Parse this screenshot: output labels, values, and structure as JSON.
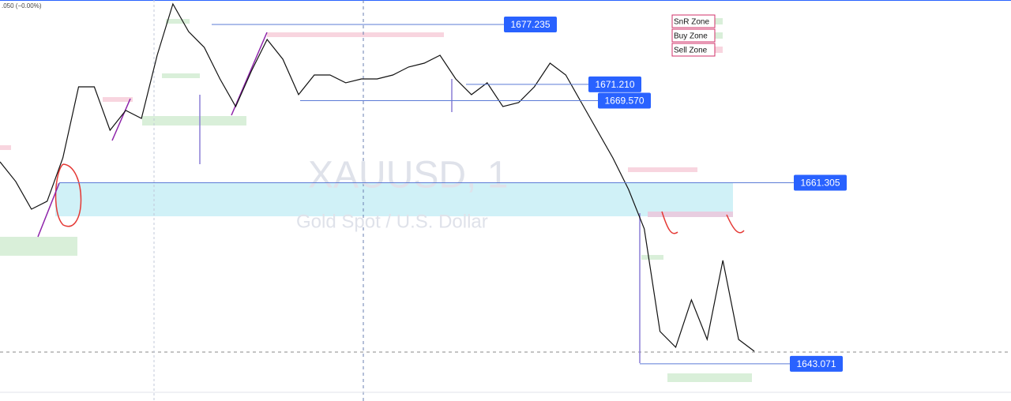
{
  "chart_data": {
    "type": "line",
    "title": "XAUUSD, 1",
    "subtitle": "Gold Spot / U.S. Dollar",
    "header_text": ".050 (−0.00%)",
    "ylim": [
      1639.33,
      1679.7
    ],
    "series": [
      {
        "color": "#111111",
        "values": [
          1663.41,
          1661.43,
          1658.64,
          1659.44,
          1663.81,
          1670.96,
          1670.96,
          1666.59,
          1668.58,
          1667.78,
          1674.14,
          1679.3,
          1676.52,
          1674.93,
          1671.75,
          1668.97,
          1672.55,
          1675.73,
          1673.74,
          1670.17,
          1672.15,
          1672.15,
          1671.36,
          1671.75,
          1671.75,
          1672.15,
          1672.95,
          1673.34,
          1674.14,
          1671.75,
          1670.17,
          1671.36,
          1668.97,
          1669.37,
          1670.96,
          1673.34,
          1672.15,
          1669.37,
          1666.59,
          1663.81,
          1660.63,
          1656.66,
          1646.33,
          1644.74,
          1649.51,
          1645.53,
          1653.48,
          1645.53,
          1644.34
        ]
      }
    ],
    "price_labels": [
      {
        "value": 1677.235,
        "label": "1677.235"
      },
      {
        "value": 1671.21,
        "label": "1671.210"
      },
      {
        "value": 1669.57,
        "label": "1669.570"
      },
      {
        "value": 1661.305,
        "label": "1661.305"
      },
      {
        "value": 1643.071,
        "label": "1643.071"
      }
    ],
    "legend": [
      "SnR Zone",
      "Buy Zone",
      "Sell Zone"
    ]
  }
}
